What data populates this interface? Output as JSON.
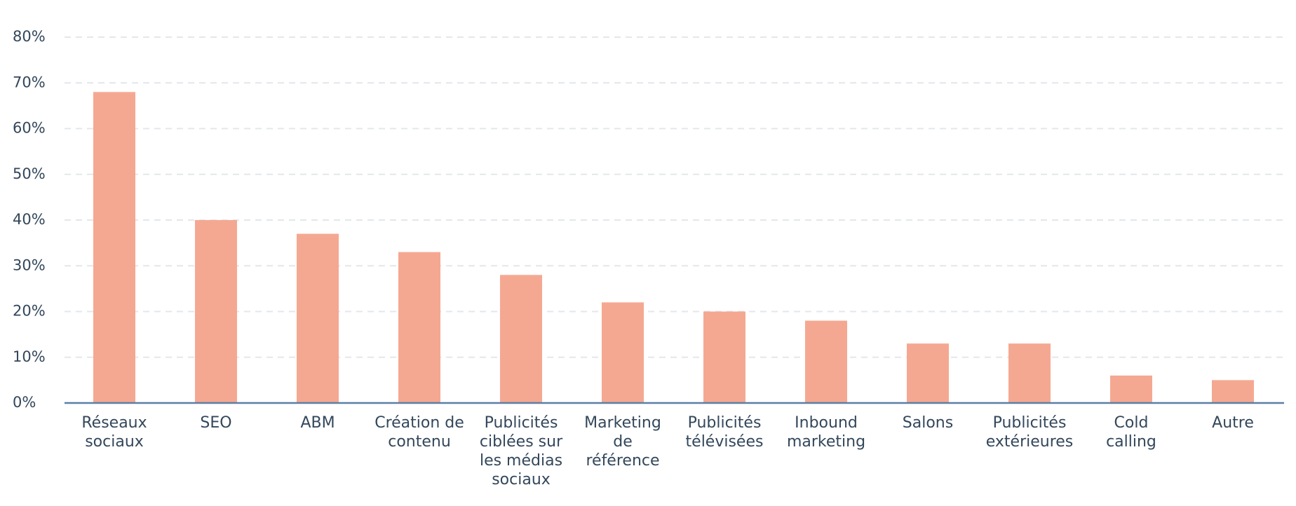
{
  "chart_data": {
    "type": "bar",
    "categories": [
      "Réseaux sociaux",
      "SEO",
      "ABM",
      "Création de contenu",
      "Publicités ciblées sur les médias sociaux",
      "Marketing de référence",
      "Publicités télévisées",
      "Inbound marketing",
      "Salons",
      "Publicités extérieures",
      "Cold calling",
      "Autre"
    ],
    "values": [
      68,
      40,
      37,
      33,
      28,
      22,
      20,
      18,
      13,
      13,
      6,
      5
    ],
    "color": "#f5a891",
    "ylim": [
      0,
      80
    ],
    "yticks": [
      {
        "value": 0,
        "label": "0%"
      },
      {
        "value": 10,
        "label": "10%"
      },
      {
        "value": 20,
        "label": "20%"
      },
      {
        "value": 30,
        "label": "30%"
      },
      {
        "value": 40,
        "label": "40%"
      },
      {
        "value": 50,
        "label": "50%"
      },
      {
        "value": 60,
        "label": "60%"
      },
      {
        "value": 70,
        "label": "70%"
      },
      {
        "value": 80,
        "label": "80%"
      }
    ],
    "grid": true
  }
}
